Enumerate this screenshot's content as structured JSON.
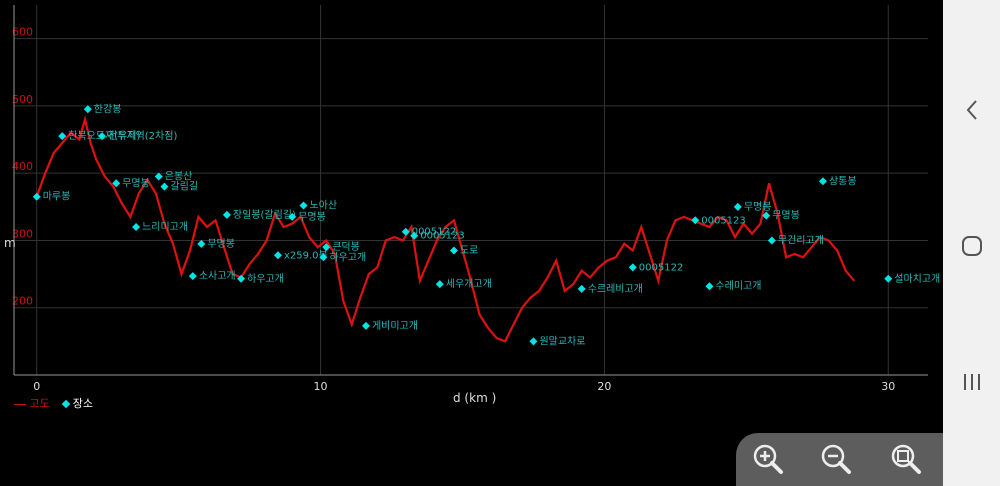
{
  "chart_data": {
    "type": "line",
    "xlabel": "d (km )",
    "ylabel": "m",
    "x_ticks": [
      "0",
      "10",
      "20",
      "30"
    ],
    "y_ticks": [
      "200",
      "300",
      "400",
      "500",
      "600"
    ],
    "xlim": [
      -0.8,
      31.4
    ],
    "ylim": [
      100,
      650
    ],
    "grid": true,
    "legend": {
      "position": "bottom-left",
      "entries": [
        {
          "label": "고도",
          "color": "#cc1111"
        },
        {
          "label": "장소",
          "color": "#00e5e5"
        }
      ]
    },
    "series": [
      {
        "name": "고도",
        "color": "#dd1111",
        "x": [
          0,
          0.3,
          0.6,
          0.9,
          1.2,
          1.5,
          1.7,
          1.9,
          2.1,
          2.4,
          2.7,
          3.0,
          3.3,
          3.6,
          3.9,
          4.2,
          4.5,
          4.8,
          5.1,
          5.4,
          5.7,
          6.0,
          6.3,
          6.6,
          6.9,
          7.2,
          7.5,
          7.8,
          8.1,
          8.4,
          8.7,
          9.0,
          9.3,
          9.6,
          9.9,
          10.2,
          10.5,
          10.8,
          11.1,
          11.4,
          11.7,
          12.0,
          12.3,
          12.6,
          12.9,
          13.2,
          13.5,
          13.8,
          14.1,
          14.4,
          14.7,
          15.0,
          15.3,
          15.6,
          15.9,
          16.2,
          16.5,
          16.8,
          17.1,
          17.4,
          17.7,
          18.0,
          18.3,
          18.6,
          18.9,
          19.2,
          19.5,
          19.8,
          20.1,
          20.4,
          20.7,
          21.0,
          21.3,
          21.6,
          21.9,
          22.2,
          22.5,
          22.8,
          23.1,
          23.4,
          23.7,
          24.0,
          24.3,
          24.6,
          24.9,
          25.2,
          25.5,
          25.8,
          26.1,
          26.4,
          26.7,
          27.0,
          27.3,
          27.6,
          27.9,
          28.2,
          28.5,
          28.8
        ],
        "y": [
          365,
          400,
          430,
          445,
          460,
          450,
          480,
          445,
          420,
          395,
          380,
          355,
          335,
          370,
          390,
          370,
          325,
          295,
          250,
          285,
          335,
          320,
          330,
          290,
          250,
          245,
          265,
          280,
          300,
          340,
          320,
          325,
          335,
          305,
          290,
          300,
          280,
          210,
          175,
          215,
          250,
          260,
          300,
          305,
          300,
          320,
          240,
          270,
          300,
          320,
          330,
          285,
          240,
          190,
          170,
          155,
          150,
          175,
          200,
          215,
          225,
          245,
          270,
          225,
          235,
          255,
          245,
          260,
          270,
          275,
          295,
          285,
          320,
          280,
          240,
          300,
          330,
          335,
          330,
          325,
          320,
          335,
          330,
          305,
          325,
          310,
          325,
          385,
          340,
          275,
          280,
          275,
          290,
          305,
          300,
          285,
          255,
          240
        ]
      }
    ],
    "places": [
      {
        "name": "마루봉",
        "x": 0,
        "y": 365
      },
      {
        "name": "한강봉",
        "x": 1.8,
        "y": 495
      },
      {
        "name": "한북오도재(유적)",
        "x": 0.9,
        "y": 455
      },
      {
        "name": "전투지역(2차점)",
        "x": 2.3,
        "y": 455
      },
      {
        "name": "무명봉",
        "x": 2.8,
        "y": 385
      },
      {
        "name": "은봉산",
        "x": 4.3,
        "y": 395
      },
      {
        "name": "갈림길",
        "x": 4.5,
        "y": 380
      },
      {
        "name": "느리미고개",
        "x": 3.5,
        "y": 320
      },
      {
        "name": "무명봉",
        "x": 5.8,
        "y": 295
      },
      {
        "name": "소사고개",
        "x": 5.5,
        "y": 247
      },
      {
        "name": "장일봉(갈림길)",
        "x": 6.7,
        "y": 338
      },
      {
        "name": "하우고개",
        "x": 7.2,
        "y": 243
      },
      {
        "name": "x259.0봉",
        "x": 8.5,
        "y": 278
      },
      {
        "name": "노아산",
        "x": 9.4,
        "y": 352
      },
      {
        "name": "무명봉",
        "x": 9.0,
        "y": 335
      },
      {
        "name": "큰덕봉",
        "x": 10.2,
        "y": 290
      },
      {
        "name": "하우고개",
        "x": 10.1,
        "y": 275
      },
      {
        "name": "게비미고개",
        "x": 11.6,
        "y": 173
      },
      {
        "name": "0005122",
        "x": 13.0,
        "y": 313
      },
      {
        "name": "0005123",
        "x": 13.3,
        "y": 307
      },
      {
        "name": "도로",
        "x": 14.7,
        "y": 285
      },
      {
        "name": "세우개고개",
        "x": 14.2,
        "y": 235
      },
      {
        "name": "원말교차로",
        "x": 17.5,
        "y": 150
      },
      {
        "name": "수르레비고개",
        "x": 19.2,
        "y": 228
      },
      {
        "name": "0005122",
        "x": 21.0,
        "y": 260
      },
      {
        "name": "0005123",
        "x": 23.2,
        "y": 330
      },
      {
        "name": "수레미고개",
        "x": 23.7,
        "y": 232
      },
      {
        "name": "무명봉",
        "x": 24.7,
        "y": 350
      },
      {
        "name": "무명봉",
        "x": 25.7,
        "y": 337
      },
      {
        "name": "무건리고개",
        "x": 25.9,
        "y": 300
      },
      {
        "name": "상통봉",
        "x": 27.7,
        "y": 388
      },
      {
        "name": "설마치고개",
        "x": 30.0,
        "y": 243
      }
    ]
  },
  "icons": {
    "back": "chevron-left-icon",
    "home": "circle-home-icon",
    "recents": "recents-icon",
    "zoom_in": "zoom-in-icon",
    "zoom_out": "zoom-out-icon",
    "zoom_fit": "zoom-fit-icon"
  }
}
